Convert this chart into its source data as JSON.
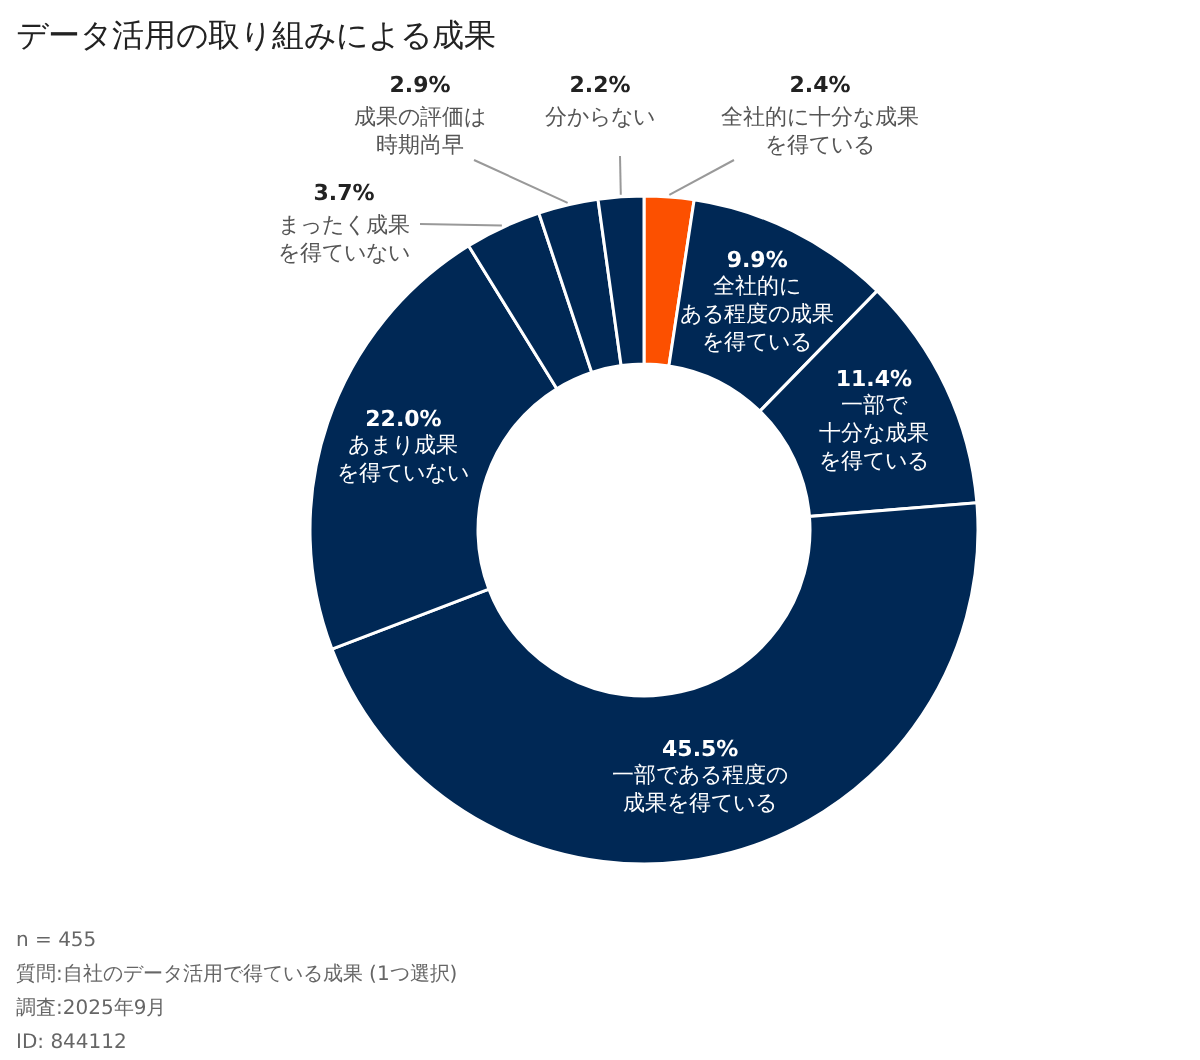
{
  "chart_data": {
    "type": "donut",
    "title": "データ活用の取り組みによる成果",
    "categories": [
      "全社的に十分な成果を得ている",
      "全社的にある程度の成果を得ている",
      "一部で十分な成果を得ている",
      "一部である程度の成果を得ている",
      "あまり成果を得ていない",
      "まったく成果を得ていない",
      "成果の評価は時期尚早",
      "分からない"
    ],
    "values": [
      2.4,
      9.9,
      11.4,
      45.5,
      22.0,
      3.7,
      2.9,
      2.2
    ],
    "value_labels": [
      "2.4%",
      "9.9%",
      "11.4%",
      "45.5%",
      "22.0%",
      "3.7%",
      "2.9%",
      "2.2%"
    ],
    "colors": [
      "#fc5000",
      "#002855",
      "#002855",
      "#002855",
      "#002855",
      "#002855",
      "#002855",
      "#002855"
    ],
    "annotations": [
      "n = 455",
      "質問:自社のデータ活用で得ている成果 (1つ選択)",
      "調査:2025年9月",
      "ID: 844112"
    ]
  }
}
